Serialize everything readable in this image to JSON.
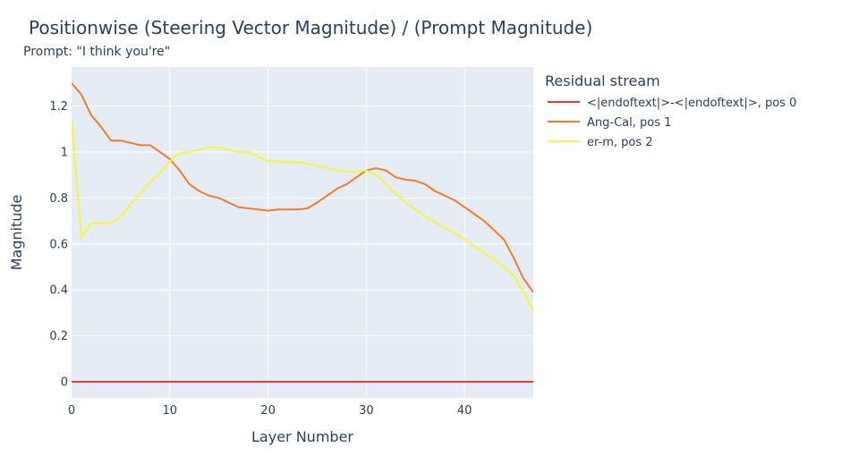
{
  "chart_data": {
    "type": "line",
    "title": "Positionwise (Steering Vector Magnitude) / (Prompt Magnitude)",
    "subtitle": "Prompt: \"I think you're\"",
    "xlabel": "Layer Number",
    "ylabel": "Magnitude",
    "xlim": [
      0,
      47
    ],
    "ylim": [
      -0.07,
      1.37
    ],
    "xticks": [
      0,
      10,
      20,
      30,
      40
    ],
    "yticks": [
      0,
      0.2,
      0.4,
      0.6,
      0.8,
      1,
      1.2
    ],
    "grid": true,
    "legend": {
      "title": "Residual stream",
      "placement": "right"
    },
    "x": [
      0,
      1,
      2,
      3,
      4,
      5,
      6,
      7,
      8,
      9,
      10,
      11,
      12,
      13,
      14,
      15,
      16,
      17,
      18,
      19,
      20,
      21,
      22,
      23,
      24,
      25,
      26,
      27,
      28,
      29,
      30,
      31,
      32,
      33,
      34,
      35,
      36,
      37,
      38,
      39,
      40,
      41,
      42,
      43,
      44,
      45,
      46,
      47
    ],
    "series": [
      {
        "name": "<|endoftext|>-<|endoftext|>, pos 0",
        "color": "#ef3b2c",
        "values": [
          0,
          0,
          0,
          0,
          0,
          0,
          0,
          0,
          0,
          0,
          0,
          0,
          0,
          0,
          0,
          0,
          0,
          0,
          0,
          0,
          0,
          0,
          0,
          0,
          0,
          0,
          0,
          0,
          0,
          0,
          0,
          0,
          0,
          0,
          0,
          0,
          0,
          0,
          0,
          0,
          0,
          0,
          0,
          0,
          0,
          0,
          0,
          0
        ]
      },
      {
        "name": "Ang-Cal, pos 1",
        "color": "#f07e26",
        "values": [
          1.3,
          1.25,
          1.16,
          1.11,
          1.05,
          1.05,
          1.04,
          1.03,
          1.03,
          1.0,
          0.97,
          0.92,
          0.86,
          0.83,
          0.81,
          0.8,
          0.78,
          0.76,
          0.755,
          0.75,
          0.745,
          0.75,
          0.75,
          0.75,
          0.755,
          0.78,
          0.81,
          0.84,
          0.86,
          0.89,
          0.92,
          0.93,
          0.92,
          0.89,
          0.88,
          0.875,
          0.86,
          0.83,
          0.81,
          0.79,
          0.76,
          0.73,
          0.7,
          0.66,
          0.62,
          0.54,
          0.45,
          0.39
        ]
      },
      {
        "name": "er-m, pos 2",
        "color": "#f6f63a",
        "values": [
          1.14,
          0.63,
          0.69,
          0.69,
          0.69,
          0.72,
          0.77,
          0.82,
          0.87,
          0.91,
          0.96,
          0.995,
          1.0,
          1.01,
          1.02,
          1.02,
          1.01,
          1.0,
          1.0,
          0.98,
          0.96,
          0.96,
          0.955,
          0.955,
          0.95,
          0.94,
          0.93,
          0.92,
          0.915,
          0.915,
          0.92,
          0.9,
          0.86,
          0.82,
          0.78,
          0.75,
          0.72,
          0.695,
          0.67,
          0.645,
          0.62,
          0.59,
          0.56,
          0.535,
          0.5,
          0.46,
          0.39,
          0.31
        ]
      }
    ]
  }
}
